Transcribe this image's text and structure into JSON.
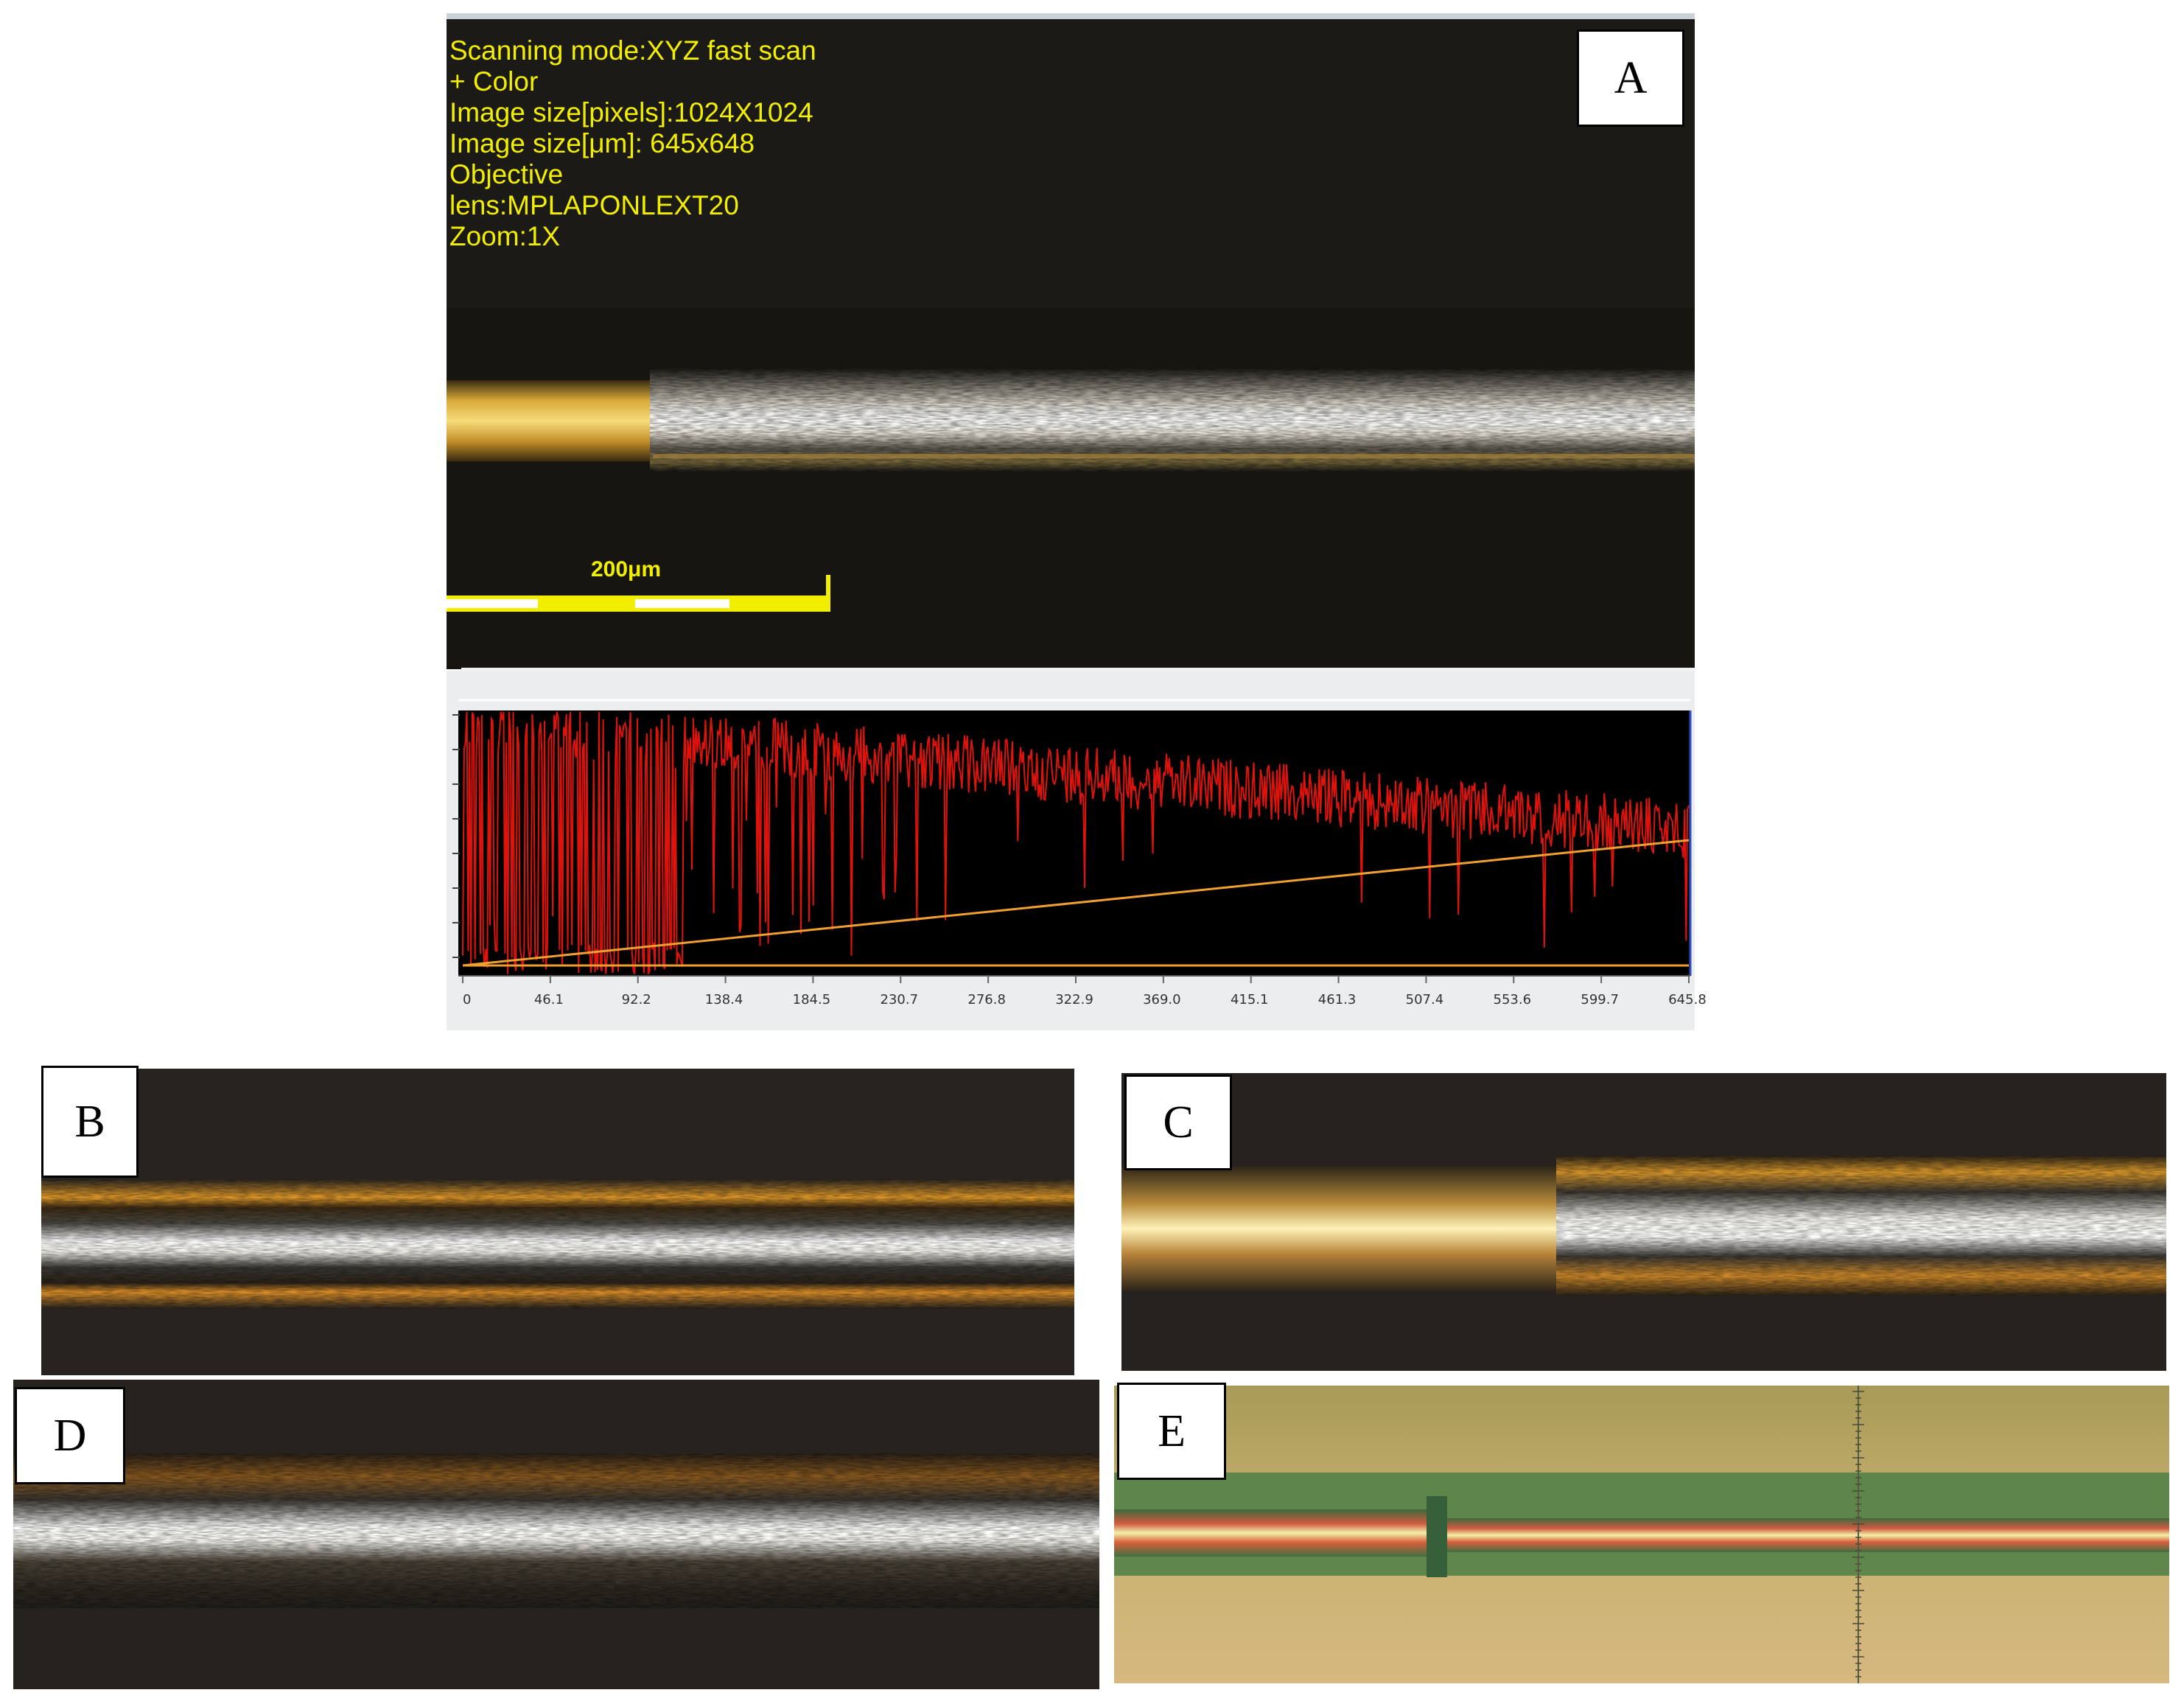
{
  "panel_a": {
    "label": "A",
    "meta_lines": [
      "Scanning mode:XYZ fast scan",
      "+ Color",
      "Image size[pixels]:1024X1024",
      "Image size[μm]: 645x648",
      "Objective",
      "lens:MPLAPONLEXT20",
      "Zoom:1X"
    ],
    "scale_bar_label": "200μm"
  },
  "profile_plot": {
    "x_ticks": [
      "0",
      "46.1",
      "92.2",
      "138.4",
      "184.5",
      "230.7",
      "276.8",
      "322.9",
      "369.0",
      "415.1",
      "461.3",
      "507.4",
      "553.6",
      "599.7",
      "645.8"
    ],
    "colors": {
      "profile": "#e0120c",
      "reference": "#f0a030",
      "background": "#000000"
    }
  },
  "panels": {
    "b": {
      "label": "B"
    },
    "c": {
      "label": "C"
    },
    "d": {
      "label": "D"
    },
    "e": {
      "label": "E"
    }
  }
}
